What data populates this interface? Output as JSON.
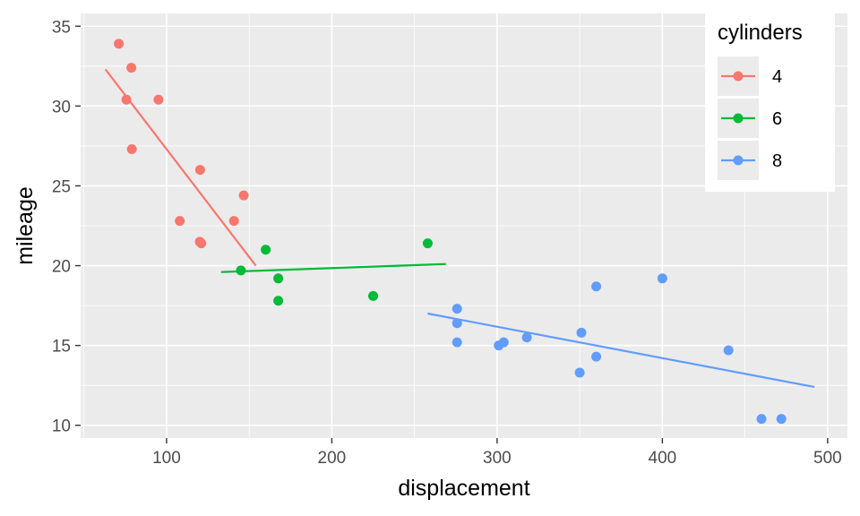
{
  "chart_data": {
    "type": "scatter",
    "xlabel": "displacement",
    "ylabel": "mileage",
    "xlim": [
      48,
      512
    ],
    "ylim": [
      9.2,
      35.8
    ],
    "x_ticks": [
      100,
      200,
      300,
      400,
      500
    ],
    "y_ticks": [
      10,
      15,
      20,
      25,
      30,
      35
    ],
    "grid": true,
    "legend": {
      "title": "cylinders",
      "position": "top-right"
    },
    "series": [
      {
        "name": "4",
        "color": "#F8766D",
        "points": [
          [
            71.1,
            33.9
          ],
          [
            78.7,
            32.4
          ],
          [
            75.7,
            30.4
          ],
          [
            79.0,
            27.3
          ],
          [
            95.1,
            30.4
          ],
          [
            120.3,
            26.0
          ],
          [
            108.0,
            22.8
          ],
          [
            140.8,
            22.8
          ],
          [
            146.7,
            24.4
          ],
          [
            120.1,
            21.5
          ],
          [
            121.0,
            21.4
          ]
        ],
        "fit": [
          [
            63,
            32.3
          ],
          [
            154,
            20.0
          ]
        ]
      },
      {
        "name": "6",
        "color": "#00BA38",
        "points": [
          [
            160.0,
            21.0
          ],
          [
            145.0,
            19.7
          ],
          [
            167.6,
            19.2
          ],
          [
            167.6,
            17.8
          ],
          [
            225.0,
            18.1
          ],
          [
            258.0,
            21.4
          ]
        ],
        "fit": [
          [
            133,
            19.6
          ],
          [
            269,
            20.1
          ]
        ]
      },
      {
        "name": "8",
        "color": "#619CFF",
        "points": [
          [
            275.8,
            17.3
          ],
          [
            275.8,
            16.4
          ],
          [
            275.8,
            15.2
          ],
          [
            301.0,
            15.0
          ],
          [
            304.0,
            15.2
          ],
          [
            318.0,
            15.5
          ],
          [
            350.0,
            13.3
          ],
          [
            351.0,
            15.8
          ],
          [
            360.0,
            18.7
          ],
          [
            360.0,
            14.3
          ],
          [
            400.0,
            19.2
          ],
          [
            440.0,
            14.7
          ],
          [
            460.0,
            10.4
          ],
          [
            472.0,
            10.4
          ]
        ],
        "fit": [
          [
            258,
            17.0
          ],
          [
            492,
            12.4
          ]
        ]
      }
    ]
  }
}
